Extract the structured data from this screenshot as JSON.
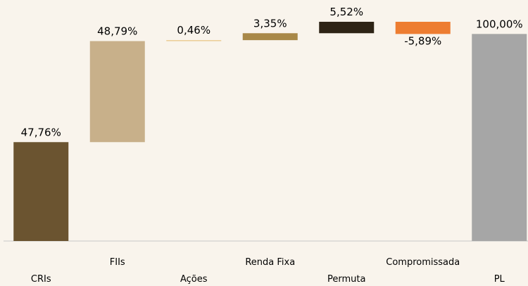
{
  "chart_data": {
    "type": "waterfall",
    "categories": [
      "CRIs",
      "FIIs",
      "Ações",
      "Renda Fixa",
      "Permuta",
      "Compromissada",
      "PL"
    ],
    "values": [
      47.76,
      48.79,
      0.46,
      3.35,
      5.52,
      -5.89,
      100
    ],
    "value_labels": [
      "47,76%",
      "48,79%",
      "0,46%",
      "3,35%",
      "5,52%",
      "-5,89%",
      "100,00%"
    ],
    "is_total": [
      false,
      false,
      false,
      false,
      false,
      false,
      true
    ],
    "colors": [
      "#6b5430",
      "#c8b08a",
      "#e9c98c",
      "#a88848",
      "#2e2416",
      "#ed7d31",
      "#a6a6a6"
    ]
  }
}
